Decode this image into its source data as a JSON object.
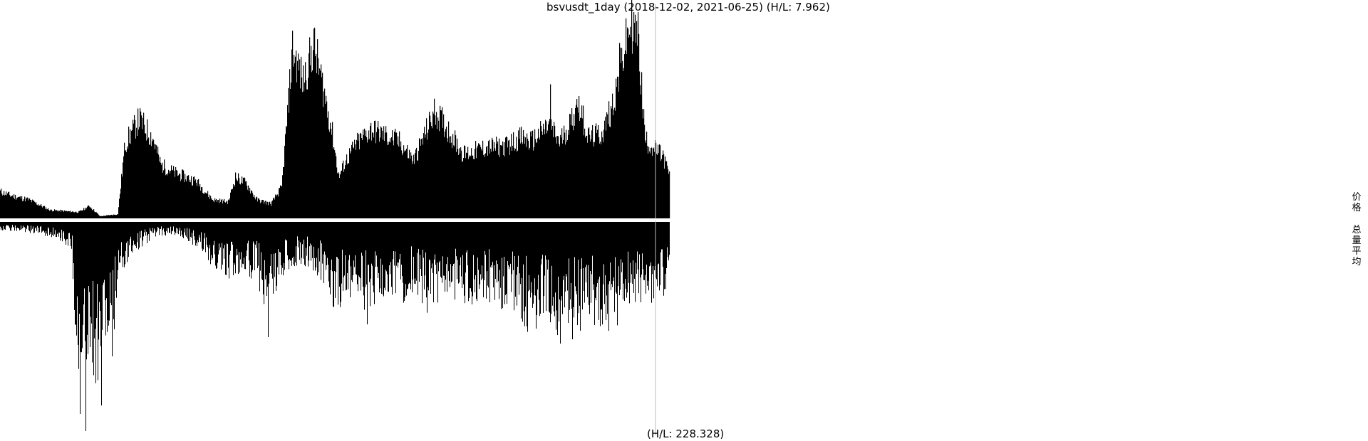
{
  "title": "bsvusdt_1day (2018-12-02, 2021-06-25) (H/L: 7.962)",
  "volume_label": "(H/L: 228.328)",
  "legend": {
    "price": "价格",
    "volume_avg": "总量平均"
  },
  "colors": {
    "bars": "#000000",
    "divider": "#ffffff",
    "cursor_line": "#bbbbbb",
    "background": "#ffffff"
  },
  "chart_data": [
    {
      "type": "bar",
      "name": "price",
      "x_range": [
        "2018-12-02",
        "2021-06-25"
      ],
      "hl_ratio": 7.962,
      "grid": false,
      "y_scale": "relative",
      "anchors": [
        [
          0,
          0.13
        ],
        [
          15,
          0.11
        ],
        [
          40,
          0.09
        ],
        [
          70,
          0.04
        ],
        [
          110,
          0.03
        ],
        [
          125,
          0.06
        ],
        [
          140,
          0.01
        ],
        [
          165,
          0.02
        ],
        [
          175,
          0.36
        ],
        [
          195,
          0.48
        ],
        [
          215,
          0.38
        ],
        [
          225,
          0.26
        ],
        [
          245,
          0.22
        ],
        [
          275,
          0.18
        ],
        [
          298,
          0.09
        ],
        [
          320,
          0.08
        ],
        [
          330,
          0.2
        ],
        [
          345,
          0.17
        ],
        [
          360,
          0.09
        ],
        [
          380,
          0.07
        ],
        [
          395,
          0.15
        ],
        [
          410,
          0.82
        ],
        [
          425,
          0.66
        ],
        [
          440,
          0.84
        ],
        [
          455,
          0.6
        ],
        [
          465,
          0.43
        ],
        [
          475,
          0.2
        ],
        [
          485,
          0.28
        ],
        [
          500,
          0.36
        ],
        [
          520,
          0.43
        ],
        [
          535,
          0.41
        ],
        [
          560,
          0.37
        ],
        [
          580,
          0.28
        ],
        [
          595,
          0.4
        ],
        [
          610,
          0.52
        ],
        [
          630,
          0.42
        ],
        [
          650,
          0.31
        ],
        [
          680,
          0.34
        ],
        [
          710,
          0.35
        ],
        [
          730,
          0.39
        ],
        [
          745,
          0.37
        ],
        [
          770,
          0.45
        ],
        [
          785,
          0.37
        ],
        [
          800,
          0.46
        ],
        [
          812,
          0.56
        ],
        [
          825,
          0.39
        ],
        [
          845,
          0.41
        ],
        [
          860,
          0.56
        ],
        [
          875,
          0.8
        ],
        [
          885,
          0.95
        ],
        [
          895,
          0.88
        ],
        [
          905,
          0.38
        ],
        [
          920,
          0.33
        ],
        [
          930,
          0.3
        ],
        [
          940,
          0.2
        ]
      ],
      "spikes": [
        [
          772,
          0.65
        ],
        [
          889,
          1.0
        ],
        [
          869,
          0.85
        ],
        [
          808,
          0.55
        ]
      ]
    },
    {
      "type": "bar",
      "name": "volume",
      "hl_ratio": 228.328,
      "grid": false,
      "y_scale": "relative",
      "orientation": "downward",
      "anchors": [
        [
          0,
          0.03
        ],
        [
          40,
          0.04
        ],
        [
          80,
          0.06
        ],
        [
          100,
          0.1
        ],
        [
          108,
          0.55
        ],
        [
          115,
          0.8
        ],
        [
          122,
          0.5
        ],
        [
          135,
          0.6
        ],
        [
          145,
          0.48
        ],
        [
          158,
          0.55
        ],
        [
          165,
          0.2
        ],
        [
          185,
          0.12
        ],
        [
          220,
          0.05
        ],
        [
          250,
          0.05
        ],
        [
          280,
          0.1
        ],
        [
          300,
          0.18
        ],
        [
          320,
          0.22
        ],
        [
          340,
          0.18
        ],
        [
          360,
          0.22
        ],
        [
          375,
          0.35
        ],
        [
          385,
          0.28
        ],
        [
          400,
          0.2
        ],
        [
          420,
          0.15
        ],
        [
          440,
          0.18
        ],
        [
          460,
          0.25
        ],
        [
          470,
          0.35
        ],
        [
          480,
          0.3
        ],
        [
          500,
          0.28
        ],
        [
          520,
          0.35
        ],
        [
          540,
          0.28
        ],
        [
          560,
          0.3
        ],
        [
          580,
          0.28
        ],
        [
          600,
          0.33
        ],
        [
          620,
          0.3
        ],
        [
          640,
          0.28
        ],
        [
          660,
          0.32
        ],
        [
          680,
          0.28
        ],
        [
          700,
          0.35
        ],
        [
          720,
          0.33
        ],
        [
          740,
          0.4
        ],
        [
          760,
          0.38
        ],
        [
          780,
          0.4
        ],
        [
          790,
          0.45
        ],
        [
          800,
          0.38
        ],
        [
          820,
          0.4
        ],
        [
          840,
          0.38
        ],
        [
          860,
          0.4
        ],
        [
          880,
          0.33
        ],
        [
          900,
          0.3
        ],
        [
          920,
          0.33
        ],
        [
          940,
          0.22
        ]
      ],
      "spikes": [
        [
          112,
          0.9
        ],
        [
          120,
          0.98
        ],
        [
          142,
          0.86
        ],
        [
          157,
          0.63
        ],
        [
          376,
          0.54
        ],
        [
          515,
          0.48
        ],
        [
          786,
          0.57
        ],
        [
          803,
          0.55
        ]
      ]
    }
  ]
}
